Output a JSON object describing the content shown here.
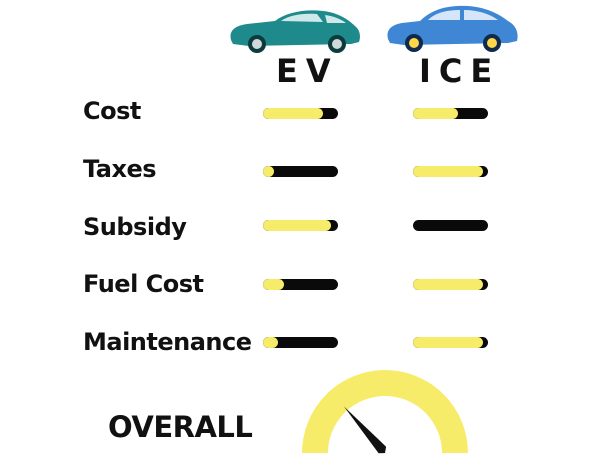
{
  "columns": {
    "ev": {
      "label": "EV",
      "car_icon": "teal-sports-car-icon",
      "car_color": "#1f8a8c"
    },
    "ice": {
      "label": "ICE",
      "car_icon": "blue-sedan-car-icon",
      "car_color": "#3f86d4"
    }
  },
  "colors": {
    "fill": "#f7ec6a",
    "track": "#0a0a0a"
  },
  "rows": [
    {
      "label": "Cost",
      "ev": 0.8,
      "ice": 0.6
    },
    {
      "label": "Taxes",
      "ev": 0.15,
      "ice": 0.93
    },
    {
      "label": "Subsidy",
      "ev": 0.9,
      "ice": 0.0
    },
    {
      "label": "Fuel Cost",
      "ev": 0.28,
      "ice": 0.93
    },
    {
      "label": "Maintenance",
      "ev": 0.2,
      "ice": 0.93
    }
  ],
  "overall": {
    "label": "OVERALL",
    "gauge_value": 0.27,
    "gauge_color": "#f7ec6a"
  }
}
